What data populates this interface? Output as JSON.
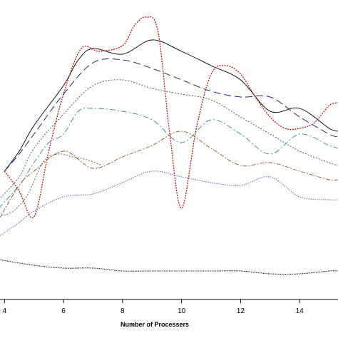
{
  "chart_data": {
    "type": "line",
    "xlabel": "Number of Processers",
    "ylabel": "",
    "title": "",
    "xlim": [
      3.8,
      15.3
    ],
    "ylim": [
      0,
      100
    ],
    "x_ticks": [
      4,
      6,
      8,
      10,
      12,
      14
    ],
    "x_tick_labels": [
      "4",
      "6",
      "8",
      "10",
      "12",
      "14"
    ],
    "legend": "none",
    "grid": false,
    "series": [
      {
        "color": "#000000",
        "dash": "solid",
        "width": 0.9,
        "x": [
          4,
          4.5,
          5,
          6,
          6.5,
          7,
          8,
          9,
          10,
          11,
          12,
          13,
          14,
          15,
          15.3
        ],
        "y": [
          45,
          52,
          61,
          75,
          84,
          88,
          86,
          91,
          87,
          82,
          77,
          66,
          67,
          60,
          59
        ]
      },
      {
        "color": "#1f2a7a",
        "dash": "10,5",
        "width": 1.0,
        "x": [
          4,
          4.5,
          5,
          6,
          7,
          8,
          9,
          10,
          11,
          12,
          13,
          14,
          15,
          15.3
        ],
        "y": [
          45,
          51,
          58,
          72,
          83,
          84,
          81,
          77,
          73,
          71,
          71,
          64,
          58,
          57
        ]
      },
      {
        "color": "#c00000",
        "dash": "2,1.5",
        "width": 1.2,
        "x": [
          4,
          4.5,
          5,
          5.5,
          6,
          6.6,
          7.2,
          8,
          8.4,
          8.8,
          9.2,
          9.6,
          10,
          10.5,
          11,
          11.5,
          12,
          12.5,
          13,
          13.5,
          14,
          14.5,
          15,
          15.3
        ],
        "y": [
          45,
          38,
          29,
          52,
          72,
          88,
          87,
          89,
          96,
          99,
          94,
          58,
          32,
          60,
          79,
          82,
          79,
          71,
          64,
          60,
          60,
          62,
          68,
          69
        ]
      },
      {
        "color": "#444444",
        "dash": "2,2",
        "width": 0.9,
        "x": [
          3.8,
          4.5,
          5,
          6,
          7,
          8,
          9,
          10,
          11,
          12,
          13,
          14,
          15,
          15.3
        ],
        "y": [
          35,
          43,
          53,
          65,
          75,
          77,
          74,
          72,
          70,
          64,
          58,
          52,
          48,
          47
        ]
      },
      {
        "color": "#2f8f8f",
        "dash": "8,3,2,3",
        "width": 0.9,
        "x": [
          3.8,
          4.5,
          5,
          5.5,
          6,
          6.5,
          7,
          8,
          9,
          10,
          11,
          12,
          13,
          14,
          15,
          15.3
        ],
        "y": [
          32,
          40,
          48,
          55,
          58,
          66,
          67,
          66,
          63,
          55,
          63,
          58,
          51,
          58,
          54,
          53
        ]
      },
      {
        "color": "#8a5a2a",
        "dash": "6,2,2,2",
        "width": 0.9,
        "x": [
          3.8,
          4.5,
          5,
          6,
          7,
          8,
          9,
          10,
          11,
          12,
          13,
          14,
          15,
          15.3
        ],
        "y": [
          28,
          40,
          45,
          52,
          46,
          50,
          54,
          59,
          53,
          47,
          48,
          45,
          42,
          42
        ]
      },
      {
        "color": "#555555",
        "dash": "2,2",
        "width": 0.9,
        "x": [
          3.8,
          4.3,
          4.8,
          5.3,
          5.8,
          6.3,
          6.8,
          7.3
        ],
        "y": [
          29,
          31,
          37,
          48,
          51,
          50,
          49,
          47
        ]
      },
      {
        "color": "#6a6ad8",
        "dash": "1.5,1.5",
        "width": 1.1,
        "x": [
          3.8,
          4.5,
          5,
          6,
          7,
          8,
          9,
          10,
          11,
          12,
          13,
          14,
          15,
          15.3
        ],
        "y": [
          22,
          27,
          31,
          36,
          37,
          41,
          45,
          43,
          41,
          40,
          43,
          36,
          35,
          35
        ]
      },
      {
        "color": "#000000",
        "dash": "1.2,1.2",
        "width": 1.1,
        "x": [
          3.8,
          5,
          6,
          7,
          8,
          9,
          10,
          11,
          12,
          13,
          14,
          15,
          15.3
        ],
        "y": [
          14,
          12,
          11,
          11,
          10,
          10,
          10,
          10,
          10,
          9,
          9,
          10,
          10
        ]
      }
    ]
  }
}
